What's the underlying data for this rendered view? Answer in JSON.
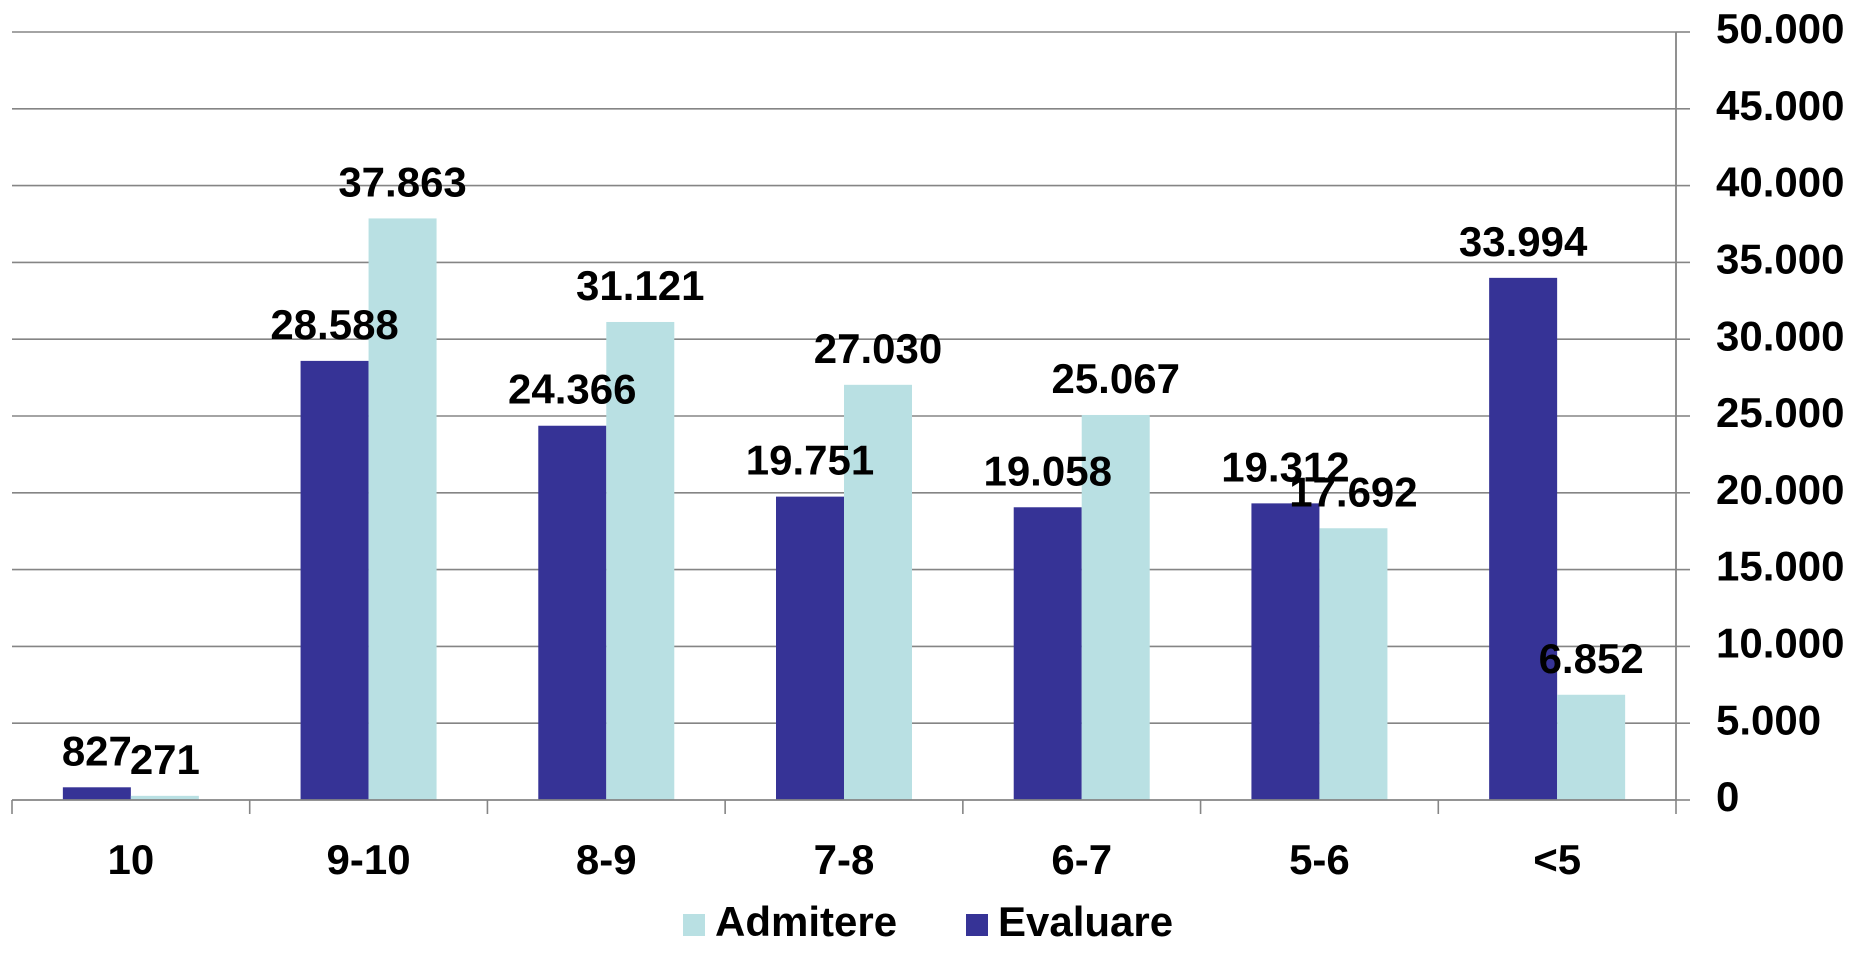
{
  "chart_data": {
    "type": "bar",
    "title": "",
    "xlabel": "",
    "ylabel": "",
    "categories": [
      "10",
      "9-10",
      "8-9",
      "7-8",
      "6-7",
      "5-6",
      "<5"
    ],
    "series": [
      {
        "name": "Evaluare",
        "color": "#363396",
        "values": [
          827,
          28588,
          24366,
          19751,
          19058,
          19312,
          33994
        ],
        "labels": [
          "827",
          "28.588",
          "24.366",
          "19.751",
          "19.058",
          "19.312",
          "33.994"
        ]
      },
      {
        "name": "Admitere",
        "color": "#b9e0e3",
        "values": [
          271,
          37863,
          31121,
          27030,
          25067,
          17692,
          6852
        ],
        "labels": [
          "271",
          "37.863",
          "31.121",
          "27.030",
          "25.067",
          "17.692",
          "6.852"
        ]
      }
    ],
    "ylim": [
      0,
      50000
    ],
    "y_ticks": [
      0,
      5000,
      10000,
      15000,
      20000,
      25000,
      30000,
      35000,
      40000,
      45000,
      50000
    ],
    "y_tick_labels": [
      "0",
      "5.000",
      "10.000",
      "15.000",
      "20.000",
      "25.000",
      "30.000",
      "35.000",
      "40.000",
      "45.000",
      "50.000"
    ],
    "y_axis_side": "right",
    "grid": true,
    "legend_position": "bottom",
    "legend_order": [
      "Admitere",
      "Evaluare"
    ]
  }
}
